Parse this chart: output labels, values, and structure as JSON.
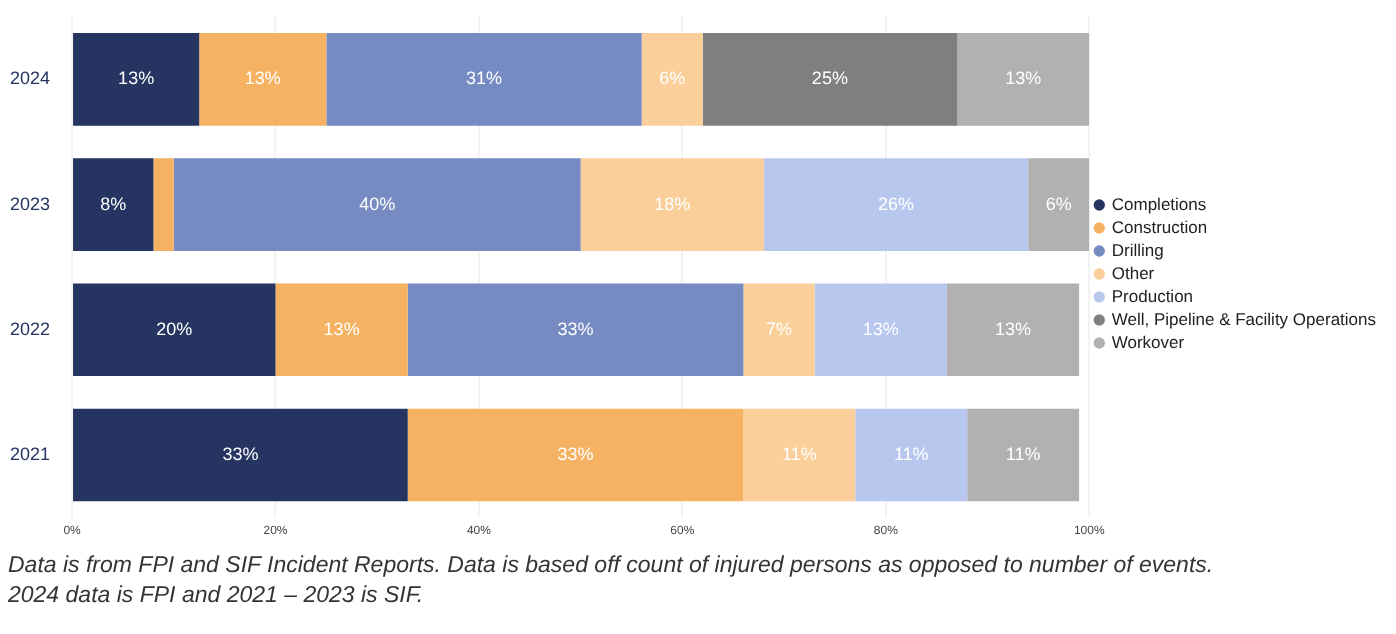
{
  "chart_data": {
    "type": "bar",
    "orientation": "horizontal",
    "stacked": true,
    "categories": [
      "2024",
      "2023",
      "2022",
      "2021"
    ],
    "series": [
      {
        "name": "Completions",
        "color": "#253461",
        "values": [
          12.5,
          8,
          20,
          33
        ],
        "value_labels": [
          "13%",
          "8%",
          "20%",
          "33%"
        ]
      },
      {
        "name": "Construction",
        "color": "#f5b263",
        "values": [
          12.5,
          2,
          13,
          33
        ],
        "value_labels": [
          "13%",
          null,
          "13%",
          "33%"
        ]
      },
      {
        "name": "Drilling",
        "color": "#778bc3",
        "values": [
          31,
          40,
          33,
          0
        ],
        "value_labels": [
          "31%",
          "40%",
          "33%",
          null
        ]
      },
      {
        "name": "Other",
        "color": "#facf9a",
        "values": [
          6,
          18,
          7,
          11
        ],
        "value_labels": [
          "6%",
          "18%",
          "7%",
          "11%"
        ]
      },
      {
        "name": "Production",
        "color": "#b8c7ee",
        "values": [
          0,
          26,
          13,
          11
        ],
        "value_labels": [
          null,
          "26%",
          "13%",
          "11%"
        ]
      },
      {
        "name": "Well, Pipeline & Facility Operations",
        "color": "#7f7f7f",
        "values": [
          25,
          0,
          0,
          0
        ],
        "value_labels": [
          "25%",
          null,
          null,
          null
        ]
      },
      {
        "name": "Workover",
        "color": "#b2b1af",
        "values": [
          13,
          6,
          13,
          11
        ],
        "value_labels": [
          "13%",
          "6%",
          "13%",
          "11%"
        ]
      }
    ],
    "xlim": [
      0,
      100
    ],
    "xticks": [
      {
        "value": 0,
        "label": "0%"
      },
      {
        "value": 20,
        "label": "20%"
      },
      {
        "value": 40,
        "label": "40%"
      },
      {
        "value": 60,
        "label": "60%"
      },
      {
        "value": 80,
        "label": "80%"
      },
      {
        "value": 100,
        "label": "100%"
      }
    ],
    "grid": "x",
    "legend": "right",
    "marker": "circle",
    "annotations": [
      "Data is from FPI and SIF Incident Reports. Data is based off count of injured persons as opposed to number of events.",
      "2024 data is FPI and 2021 – 2023 is SIF."
    ]
  }
}
